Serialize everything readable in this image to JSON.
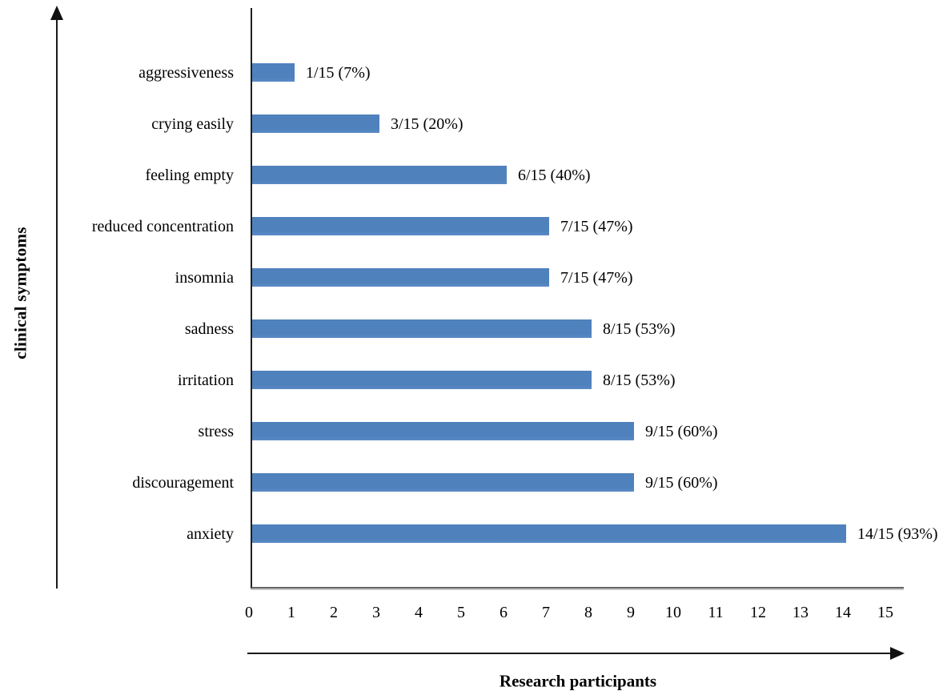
{
  "chart_data": {
    "type": "bar",
    "orientation": "horizontal",
    "title": "",
    "xlabel": "Research participants",
    "ylabel": "clinical symptoms",
    "categories": [
      "aggressiveness",
      "crying easily",
      "feeling empty",
      "reduced concentration",
      "insomnia",
      "sadness",
      "irritation",
      "stress",
      "discouragement",
      "anxiety"
    ],
    "values": [
      1,
      3,
      6,
      7,
      7,
      8,
      8,
      9,
      9,
      14
    ],
    "bar_labels": [
      "1/15 (7%)",
      "3/15 (20%)",
      "6/15 (40%)",
      "7/15 (47%)",
      "7/15 (47%)",
      "8/15 (53%)",
      "8/15 (53%)",
      "9/15 (60%)",
      "9/15 (60%)",
      "14/15 (93%)"
    ],
    "total_participants": 15,
    "x_ticks": [
      "0",
      "1",
      "2",
      "3",
      "4",
      "5",
      "6",
      "7",
      "8",
      "9",
      "10",
      "11",
      "12",
      "13",
      "14",
      "15"
    ],
    "xlim": [
      0,
      15
    ],
    "grid": false,
    "legend": false,
    "bar_color": "#4f81bd",
    "axis_arrow_color": "#111111",
    "text_color": "#000000"
  }
}
